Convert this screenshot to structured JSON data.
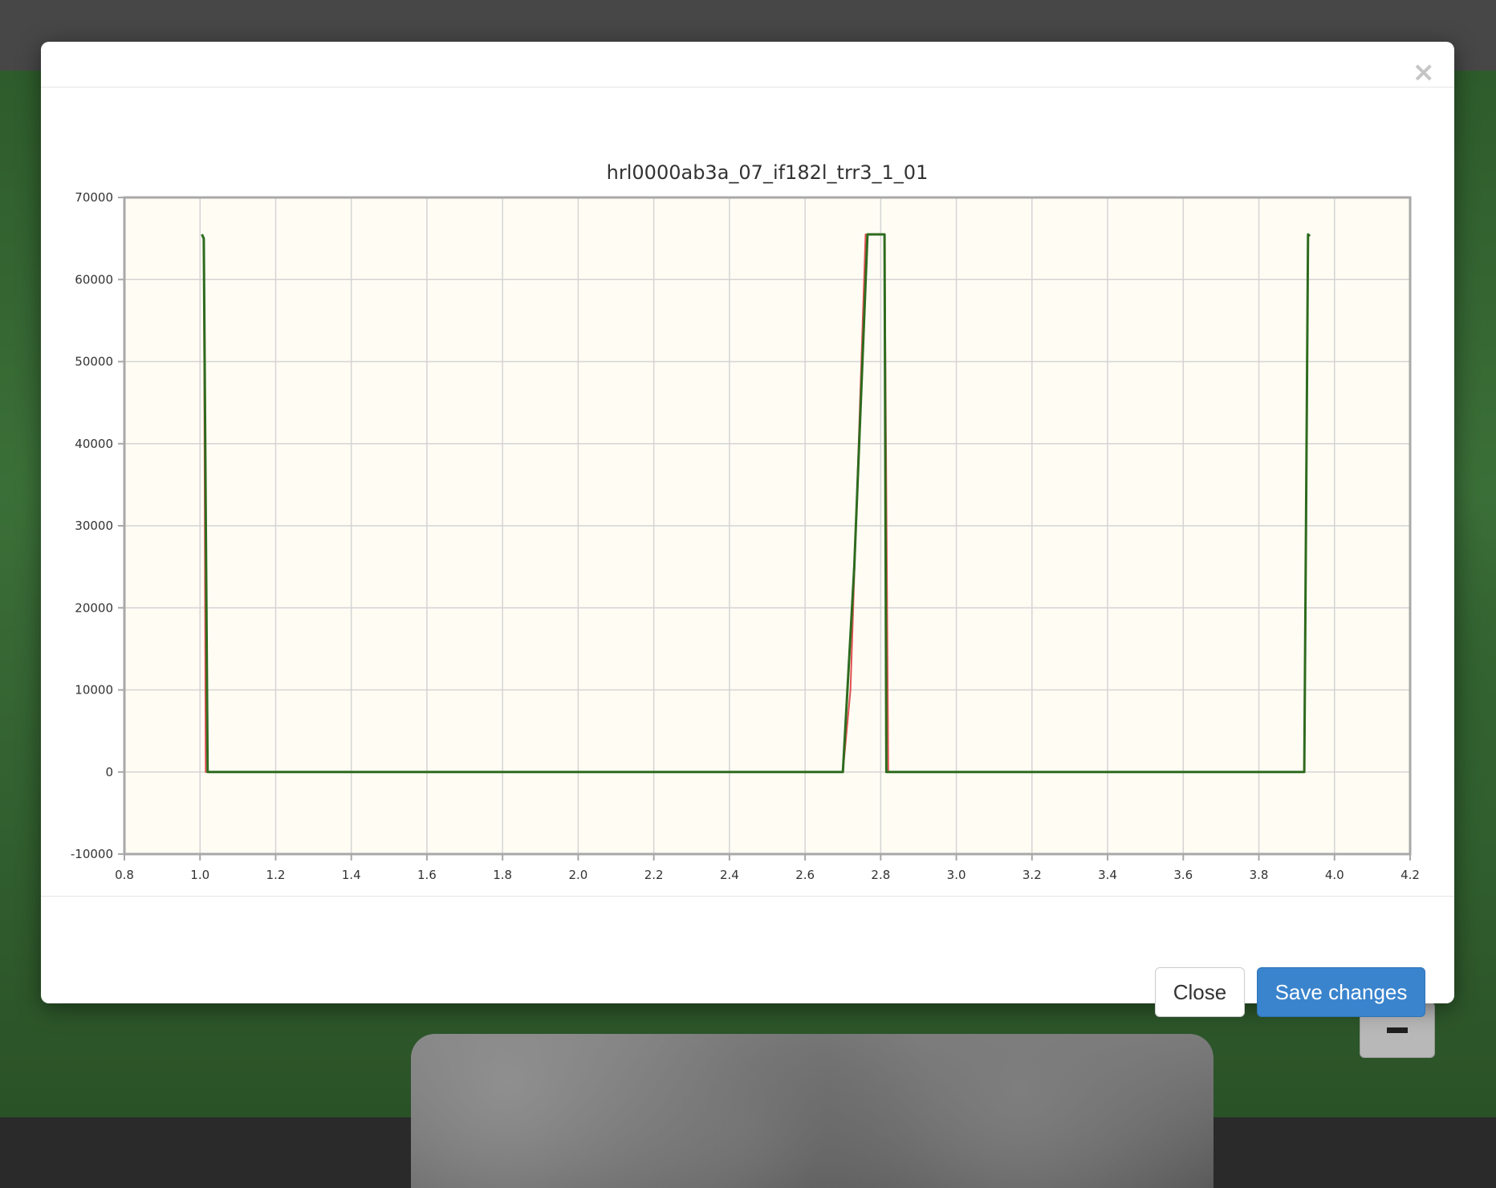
{
  "modal": {
    "close_icon": "×",
    "footer": {
      "close_label": "Close",
      "save_label": "Save changes"
    }
  },
  "chart_data": {
    "type": "line",
    "title": "hrl0000ab3a_07_if182l_trr3_1_01",
    "xlabel": "",
    "ylabel": "",
    "xlim": [
      0.8,
      4.2
    ],
    "ylim": [
      -10000,
      70000
    ],
    "x_ticks": [
      0.8,
      1.0,
      1.2,
      1.4,
      1.6,
      1.8,
      2.0,
      2.2,
      2.4,
      2.6,
      2.8,
      3.0,
      3.2,
      3.4,
      3.6,
      3.8,
      4.0,
      4.2
    ],
    "x_tick_labels": [
      "0.8",
      "1.0",
      "1.2",
      "1.4",
      "1.6",
      "1.8",
      "2.0",
      "2.2",
      "2.4",
      "2.6",
      "2.8",
      "3.0",
      "3.2",
      "3.4",
      "3.6",
      "3.8",
      "4.0",
      "4.2"
    ],
    "y_ticks": [
      -10000,
      0,
      10000,
      20000,
      30000,
      40000,
      50000,
      60000,
      70000
    ],
    "y_tick_labels": [
      "-10000",
      "0",
      "10000",
      "20000",
      "30000",
      "40000",
      "50000",
      "60000",
      "70000"
    ],
    "grid": true,
    "plot_background": "#fffcf4",
    "series": [
      {
        "color": "#e05050",
        "x": [
          1.005,
          1.01,
          1.015,
          2.7,
          2.72,
          2.76,
          2.81,
          2.82,
          3.92,
          3.93,
          3.935
        ],
        "y": [
          65500,
          65000,
          0,
          0,
          10000,
          65500,
          65500,
          0,
          0,
          65500,
          65300
        ]
      },
      {
        "color": "#2e6b1e",
        "x": [
          1.005,
          1.01,
          1.02,
          2.7,
          2.73,
          2.765,
          2.81,
          2.815,
          3.92,
          3.93,
          3.935
        ],
        "y": [
          65500,
          65000,
          0,
          0,
          25000,
          65500,
          65500,
          0,
          0,
          65500,
          65300
        ]
      }
    ]
  }
}
